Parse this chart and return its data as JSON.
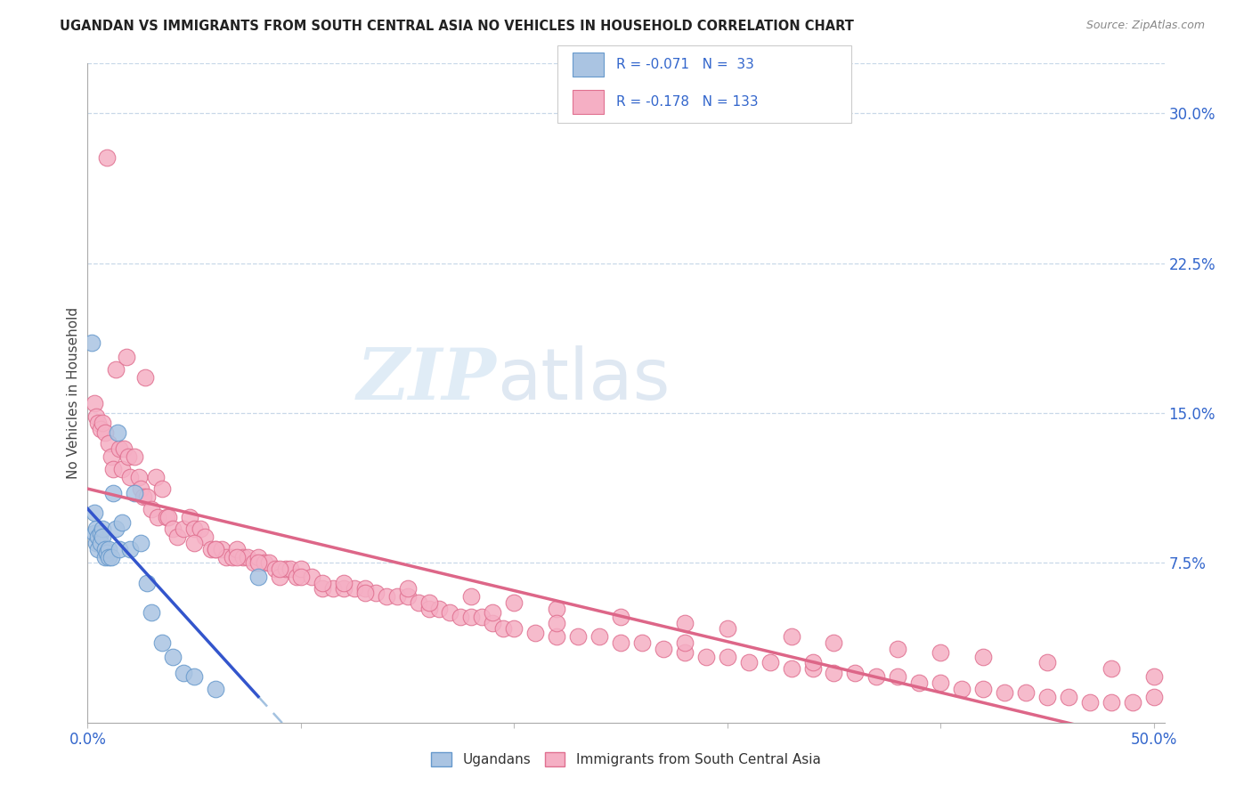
{
  "title": "UGANDAN VS IMMIGRANTS FROM SOUTH CENTRAL ASIA NO VEHICLES IN HOUSEHOLD CORRELATION CHART",
  "source": "Source: ZipAtlas.com",
  "ylabel": "No Vehicles in Household",
  "xlim": [
    0.0,
    0.505
  ],
  "ylim": [
    -0.005,
    0.325
  ],
  "xticks": [
    0.0,
    0.1,
    0.2,
    0.3,
    0.4,
    0.5
  ],
  "xtick_labels": [
    "0.0%",
    "",
    "",
    "",
    "",
    "50.0%"
  ],
  "yticks_right": [
    0.075,
    0.15,
    0.225,
    0.3
  ],
  "ytick_labels_right": [
    "7.5%",
    "15.0%",
    "22.5%",
    "30.0%"
  ],
  "ugandan_color": "#aac4e2",
  "immigrant_color": "#f5afc4",
  "ugandan_edge": "#6699cc",
  "immigrant_edge": "#e07090",
  "blue_line_color": "#3355cc",
  "pink_line_color": "#dd6688",
  "dashed_line_color": "#99bbdd",
  "legend_R1": "R = -0.071",
  "legend_N1": "N =  33",
  "legend_R2": "R = -0.178",
  "legend_N2": "N = 133",
  "watermark_zip": "ZIP",
  "watermark_atlas": "atlas",
  "ugandan_x": [
    0.002,
    0.003,
    0.003,
    0.004,
    0.004,
    0.005,
    0.005,
    0.006,
    0.006,
    0.007,
    0.007,
    0.008,
    0.008,
    0.009,
    0.01,
    0.01,
    0.011,
    0.012,
    0.013,
    0.014,
    0.015,
    0.016,
    0.02,
    0.022,
    0.025,
    0.028,
    0.03,
    0.035,
    0.04,
    0.045,
    0.05,
    0.06,
    0.08
  ],
  "ugandan_y": [
    0.185,
    0.1,
    0.09,
    0.092,
    0.085,
    0.088,
    0.082,
    0.09,
    0.085,
    0.092,
    0.088,
    0.082,
    0.078,
    0.08,
    0.082,
    0.078,
    0.078,
    0.11,
    0.092,
    0.14,
    0.082,
    0.095,
    0.082,
    0.11,
    0.085,
    0.065,
    0.05,
    0.035,
    0.028,
    0.02,
    0.018,
    0.012,
    0.068
  ],
  "immigrant_x": [
    0.003,
    0.004,
    0.005,
    0.006,
    0.007,
    0.008,
    0.009,
    0.01,
    0.011,
    0.012,
    0.013,
    0.015,
    0.016,
    0.017,
    0.018,
    0.019,
    0.02,
    0.022,
    0.024,
    0.025,
    0.026,
    0.027,
    0.028,
    0.03,
    0.032,
    0.033,
    0.035,
    0.037,
    0.038,
    0.04,
    0.042,
    0.045,
    0.048,
    0.05,
    0.053,
    0.055,
    0.058,
    0.06,
    0.063,
    0.065,
    0.068,
    0.07,
    0.073,
    0.075,
    0.078,
    0.08,
    0.083,
    0.085,
    0.088,
    0.09,
    0.093,
    0.095,
    0.098,
    0.1,
    0.105,
    0.11,
    0.115,
    0.12,
    0.125,
    0.13,
    0.135,
    0.14,
    0.145,
    0.15,
    0.155,
    0.16,
    0.165,
    0.17,
    0.175,
    0.18,
    0.185,
    0.19,
    0.195,
    0.2,
    0.21,
    0.22,
    0.23,
    0.24,
    0.25,
    0.26,
    0.27,
    0.28,
    0.29,
    0.3,
    0.31,
    0.32,
    0.33,
    0.34,
    0.35,
    0.36,
    0.37,
    0.38,
    0.39,
    0.4,
    0.41,
    0.42,
    0.43,
    0.44,
    0.45,
    0.46,
    0.47,
    0.48,
    0.49,
    0.5,
    0.12,
    0.15,
    0.18,
    0.2,
    0.22,
    0.25,
    0.28,
    0.3,
    0.33,
    0.35,
    0.38,
    0.4,
    0.42,
    0.45,
    0.48,
    0.5,
    0.05,
    0.06,
    0.07,
    0.08,
    0.09,
    0.1,
    0.11,
    0.13,
    0.16,
    0.19,
    0.22,
    0.28,
    0.34
  ],
  "immigrant_y": [
    0.155,
    0.148,
    0.145,
    0.142,
    0.145,
    0.14,
    0.278,
    0.135,
    0.128,
    0.122,
    0.172,
    0.132,
    0.122,
    0.132,
    0.178,
    0.128,
    0.118,
    0.128,
    0.118,
    0.112,
    0.108,
    0.168,
    0.108,
    0.102,
    0.118,
    0.098,
    0.112,
    0.098,
    0.098,
    0.092,
    0.088,
    0.092,
    0.098,
    0.092,
    0.092,
    0.088,
    0.082,
    0.082,
    0.082,
    0.078,
    0.078,
    0.082,
    0.078,
    0.078,
    0.075,
    0.078,
    0.075,
    0.075,
    0.072,
    0.068,
    0.072,
    0.072,
    0.068,
    0.072,
    0.068,
    0.062,
    0.062,
    0.062,
    0.062,
    0.062,
    0.06,
    0.058,
    0.058,
    0.058,
    0.055,
    0.052,
    0.052,
    0.05,
    0.048,
    0.048,
    0.048,
    0.045,
    0.042,
    0.042,
    0.04,
    0.038,
    0.038,
    0.038,
    0.035,
    0.035,
    0.032,
    0.03,
    0.028,
    0.028,
    0.025,
    0.025,
    0.022,
    0.022,
    0.02,
    0.02,
    0.018,
    0.018,
    0.015,
    0.015,
    0.012,
    0.012,
    0.01,
    0.01,
    0.008,
    0.008,
    0.005,
    0.005,
    0.005,
    0.008,
    0.065,
    0.062,
    0.058,
    0.055,
    0.052,
    0.048,
    0.045,
    0.042,
    0.038,
    0.035,
    0.032,
    0.03,
    0.028,
    0.025,
    0.022,
    0.018,
    0.085,
    0.082,
    0.078,
    0.075,
    0.072,
    0.068,
    0.065,
    0.06,
    0.055,
    0.05,
    0.045,
    0.035,
    0.025
  ]
}
